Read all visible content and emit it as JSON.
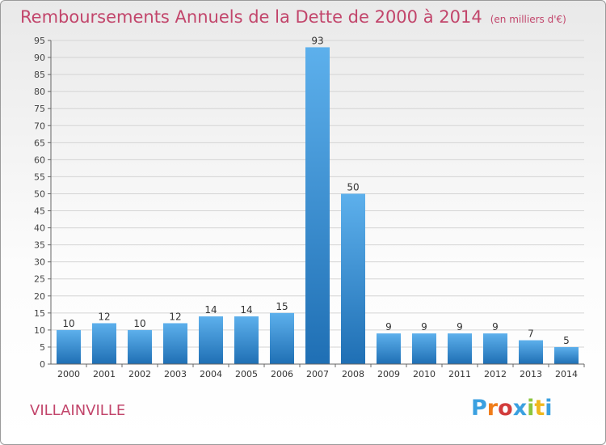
{
  "header": {
    "title": "Remboursements Annuels de la Dette de 2000 à 2014",
    "unit": "(en milliers d'€)"
  },
  "footer": {
    "commune": "VILLAINVILLE",
    "logo_letters": [
      "P",
      "r",
      "o",
      "x",
      "i",
      "t",
      "i"
    ],
    "logo_colors": [
      "#3aa0e0",
      "#f07d1a",
      "#d23c3c",
      "#3aa0e0",
      "#8cc63e",
      "#f0b81e",
      "#3aa0e0"
    ]
  },
  "colors": {
    "title": "#c2456b",
    "bar_top": "#5db0ec",
    "bar_bottom": "#1f6fb4",
    "grid": "#d4d4d4",
    "axis": "#666666"
  },
  "chart_data": {
    "type": "bar",
    "title": "Remboursements Annuels de la Dette de 2000 à 2014",
    "categories": [
      "2000",
      "2001",
      "2002",
      "2003",
      "2004",
      "2005",
      "2006",
      "2007",
      "2008",
      "2009",
      "2010",
      "2011",
      "2012",
      "2013",
      "2014"
    ],
    "values": [
      10,
      12,
      10,
      12,
      14,
      14,
      15,
      93,
      50,
      9,
      9,
      9,
      9,
      7,
      5
    ],
    "ylim": [
      0,
      95
    ],
    "yticks": [
      0,
      5,
      10,
      15,
      20,
      25,
      30,
      35,
      40,
      45,
      50,
      55,
      60,
      65,
      70,
      75,
      80,
      85,
      90,
      95
    ],
    "grid": true,
    "data_labels": true
  }
}
